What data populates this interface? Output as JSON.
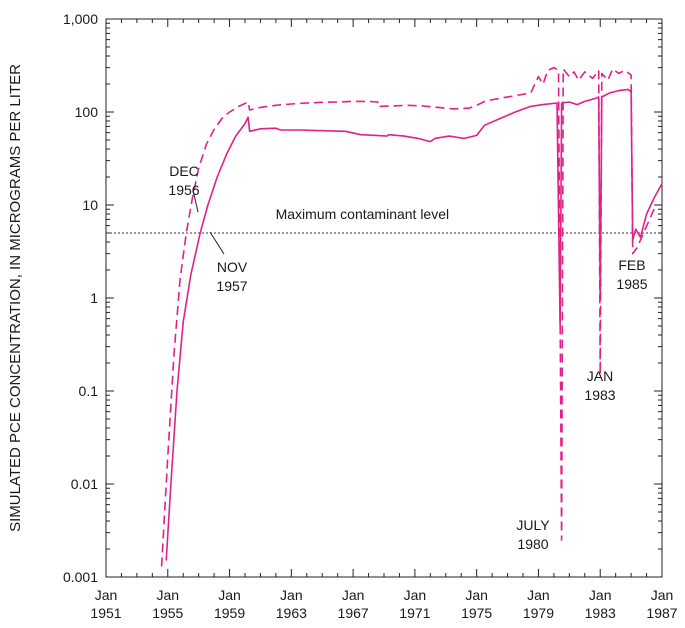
{
  "chart_data": {
    "type": "line",
    "title": "",
    "ylabel": "SIMULATED PCE CONCENTRATION, IN MICROGRAMS PER LITER",
    "xlabel": "",
    "y_scale": "log",
    "ylim": [
      0.001,
      1000
    ],
    "xlim": [
      "1951-01",
      "1987-01"
    ],
    "grid": false,
    "x_ticks": [
      {
        "year": 1951,
        "label_top": "Jan",
        "label_bottom": "1951"
      },
      {
        "year": 1955,
        "label_top": "Jan",
        "label_bottom": "1955"
      },
      {
        "year": 1959,
        "label_top": "Jan",
        "label_bottom": "1959"
      },
      {
        "year": 1963,
        "label_top": "Jan",
        "label_bottom": "1963"
      },
      {
        "year": 1967,
        "label_top": "Jan",
        "label_bottom": "1967"
      },
      {
        "year": 1971,
        "label_top": "Jan",
        "label_bottom": "1971"
      },
      {
        "year": 1975,
        "label_top": "Jan",
        "label_bottom": "1975"
      },
      {
        "year": 1979,
        "label_top": "Jan",
        "label_bottom": "1979"
      },
      {
        "year": 1983,
        "label_top": "Jan",
        "label_bottom": "1983"
      },
      {
        "year": 1987,
        "label_top": "Jan",
        "label_bottom": "1987"
      }
    ],
    "y_ticks": [
      {
        "value": 0.001,
        "label": "0.001"
      },
      {
        "value": 0.01,
        "label": "0.01"
      },
      {
        "value": 0.1,
        "label": "0.1"
      },
      {
        "value": 1,
        "label": "1"
      },
      {
        "value": 10,
        "label": "10"
      },
      {
        "value": 100,
        "label": "100"
      },
      {
        "value": 1000,
        "label": "1,000"
      }
    ],
    "reference_line": {
      "value": 5,
      "label": "Maximum contaminant level",
      "style": "dotted"
    },
    "series": [
      {
        "style": "dashed",
        "color": "#e0218a",
        "points": [
          [
            1954.6,
            0.0013
          ],
          [
            1955.0,
            0.02
          ],
          [
            1955.4,
            0.25
          ],
          [
            1955.8,
            1.6
          ],
          [
            1956.2,
            5
          ],
          [
            1956.6,
            12
          ],
          [
            1957.0,
            25
          ],
          [
            1957.5,
            45
          ],
          [
            1958.0,
            65
          ],
          [
            1958.5,
            85
          ],
          [
            1959.0,
            100
          ],
          [
            1959.6,
            115
          ],
          [
            1960.2,
            128
          ],
          [
            1960.3,
            105
          ],
          [
            1961.0,
            112
          ],
          [
            1962.0,
            118
          ],
          [
            1963.0,
            122
          ],
          [
            1964.0,
            125
          ],
          [
            1965.0,
            127
          ],
          [
            1966.0,
            128
          ],
          [
            1967.0,
            130
          ],
          [
            1968.0,
            130
          ],
          [
            1968.6,
            128
          ],
          [
            1968.6,
            115
          ],
          [
            1969.5,
            116
          ],
          [
            1970.5,
            118
          ],
          [
            1971.5,
            116
          ],
          [
            1972.5,
            112
          ],
          [
            1973.5,
            108
          ],
          [
            1974.5,
            110
          ],
          [
            1975.0,
            118
          ],
          [
            1975.6,
            132
          ],
          [
            1976.5,
            140
          ],
          [
            1977.5,
            150
          ],
          [
            1978.5,
            160
          ],
          [
            1979.0,
            240
          ],
          [
            1979.3,
            200
          ],
          [
            1979.6,
            280
          ],
          [
            1980.0,
            300
          ],
          [
            1980.3,
            280
          ],
          [
            1980.5,
            0.0025
          ],
          [
            1980.6,
            290
          ],
          [
            1981.0,
            240
          ],
          [
            1981.3,
            270
          ],
          [
            1981.6,
            220
          ],
          [
            1982.0,
            270
          ],
          [
            1982.5,
            230
          ],
          [
            1982.9,
            280
          ],
          [
            1983.0,
            0.15
          ],
          [
            1983.1,
            260
          ],
          [
            1983.5,
            220
          ],
          [
            1983.8,
            290
          ],
          [
            1984.2,
            260
          ],
          [
            1984.6,
            280
          ],
          [
            1985.0,
            250
          ],
          [
            1985.1,
            3.0
          ],
          [
            1985.4,
            3.5
          ],
          [
            1985.8,
            5
          ],
          [
            1986.2,
            7
          ],
          [
            1986.6,
            10
          ]
        ]
      },
      {
        "style": "solid",
        "color": "#e0218a",
        "points": [
          [
            1954.9,
            0.0015
          ],
          [
            1955.2,
            0.01
          ],
          [
            1955.6,
            0.1
          ],
          [
            1956.0,
            0.55
          ],
          [
            1956.5,
            1.8
          ],
          [
            1957.1,
            5
          ],
          [
            1957.6,
            10
          ],
          [
            1958.2,
            20
          ],
          [
            1958.8,
            35
          ],
          [
            1959.4,
            55
          ],
          [
            1960.0,
            75
          ],
          [
            1960.2,
            88
          ],
          [
            1960.3,
            62
          ],
          [
            1961.0,
            66
          ],
          [
            1962.0,
            67
          ],
          [
            1962.3,
            64
          ],
          [
            1963.5,
            64
          ],
          [
            1965.0,
            63
          ],
          [
            1966.5,
            62
          ],
          [
            1967.5,
            57
          ],
          [
            1968.5,
            56
          ],
          [
            1969.2,
            55
          ],
          [
            1969.3,
            57
          ],
          [
            1970.3,
            55
          ],
          [
            1971.2,
            52
          ],
          [
            1972.0,
            48
          ],
          [
            1972.3,
            52
          ],
          [
            1973.2,
            55
          ],
          [
            1974.2,
            52
          ],
          [
            1975.0,
            56
          ],
          [
            1975.5,
            72
          ],
          [
            1976.5,
            85
          ],
          [
            1977.5,
            100
          ],
          [
            1978.5,
            115
          ],
          [
            1979.3,
            120
          ],
          [
            1980.2,
            125
          ],
          [
            1980.4,
            0.5
          ],
          [
            1980.5,
            125
          ],
          [
            1981.0,
            128
          ],
          [
            1981.5,
            120
          ],
          [
            1982.0,
            130
          ],
          [
            1982.7,
            140
          ],
          [
            1982.9,
            145
          ],
          [
            1983.0,
            1.0
          ],
          [
            1983.1,
            145
          ],
          [
            1983.6,
            160
          ],
          [
            1984.2,
            170
          ],
          [
            1984.8,
            175
          ],
          [
            1985.0,
            165
          ],
          [
            1985.1,
            4.2
          ],
          [
            1985.3,
            5.5
          ],
          [
            1985.6,
            4.5
          ],
          [
            1986.0,
            8
          ],
          [
            1986.5,
            12
          ],
          [
            1987.0,
            17
          ]
        ]
      }
    ],
    "annotations": [
      {
        "lines": [
          "DEC",
          "1956"
        ],
        "anchor": "top-left",
        "year": 1956.1,
        "value": 5
      },
      {
        "lines": [
          "NOV",
          "1957"
        ],
        "anchor": "bottom-right",
        "year": 1957.1,
        "value": 5
      },
      {
        "lines": [
          "JULY",
          "1980"
        ],
        "anchor": "bottom",
        "year": 1980.5,
        "value": 0.0025
      },
      {
        "lines": [
          "JAN",
          "1983"
        ],
        "anchor": "bottom",
        "year": 1983.0,
        "value": 0.15
      },
      {
        "lines": [
          "FEB",
          "1985"
        ],
        "anchor": "left",
        "year": 1985.1,
        "value": 1.2
      }
    ]
  }
}
